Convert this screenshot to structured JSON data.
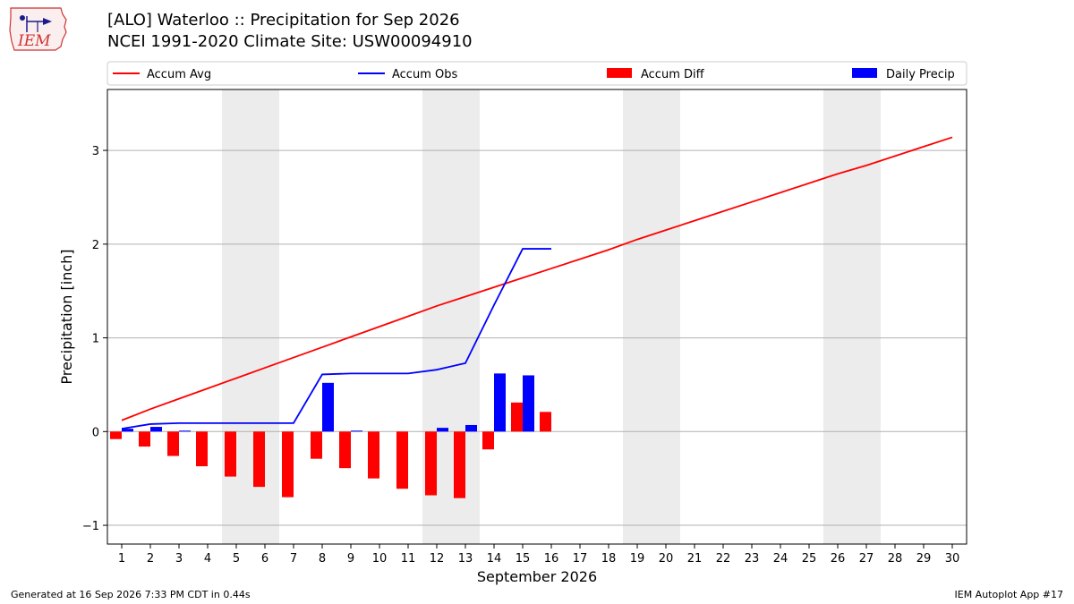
{
  "header": {
    "title": "[ALO] Waterloo :: Precipitation for Sep 2026",
    "subtitle": "NCEI 1991-2020 Climate Site: USW00094910"
  },
  "logo": {
    "text": "IEM",
    "icon": "iem-iowa-logo-icon",
    "color": "#cc3333"
  },
  "footer": {
    "generated": "Generated at 16 Sep 2026 7:33 PM CDT in 0.44s",
    "app": "IEM Autoplot App #17"
  },
  "chart_data": {
    "type": "bar",
    "xlabel": "September 2026",
    "ylabel": "Precipitation [inch]",
    "xlim": [
      0.5,
      30.5
    ],
    "ylim": [
      -1.2,
      3.65
    ],
    "yticks": [
      -1,
      0,
      1,
      2,
      3
    ],
    "ytick_labels": [
      "−1",
      "0",
      "1",
      "2",
      "3"
    ],
    "xticks": [
      1,
      2,
      3,
      4,
      5,
      6,
      7,
      8,
      9,
      10,
      11,
      12,
      13,
      14,
      15,
      16,
      17,
      18,
      19,
      20,
      21,
      22,
      23,
      24,
      25,
      26,
      27,
      28,
      29,
      30
    ],
    "weekend_shading": [
      [
        4.5,
        6.5
      ],
      [
        11.5,
        13.5
      ],
      [
        18.5,
        20.5
      ],
      [
        25.5,
        27.5
      ]
    ],
    "grid": "horizontal",
    "legend_position": "top",
    "legend": [
      {
        "label": "Accum Avg",
        "kind": "line",
        "color": "#ff0000"
      },
      {
        "label": "Accum Obs",
        "kind": "line",
        "color": "#0000ff"
      },
      {
        "label": "Accum Diff",
        "kind": "bar",
        "color": "#ff0000"
      },
      {
        "label": "Daily Precip",
        "kind": "bar",
        "color": "#0000ff"
      }
    ],
    "series": [
      {
        "name": "Accum Avg",
        "type": "line",
        "color": "#ff0000",
        "x": [
          1,
          2,
          3,
          4,
          5,
          6,
          7,
          8,
          9,
          10,
          11,
          12,
          13,
          14,
          15,
          16,
          17,
          18,
          19,
          20,
          21,
          22,
          23,
          24,
          25,
          26,
          27,
          28,
          29,
          30
        ],
        "values": [
          0.12,
          0.24,
          0.35,
          0.46,
          0.57,
          0.68,
          0.79,
          0.9,
          1.01,
          1.12,
          1.23,
          1.34,
          1.44,
          1.54,
          1.64,
          1.74,
          1.84,
          1.94,
          2.05,
          2.15,
          2.25,
          2.35,
          2.45,
          2.55,
          2.65,
          2.75,
          2.84,
          2.94,
          3.04,
          3.14
        ]
      },
      {
        "name": "Accum Obs",
        "type": "line",
        "color": "#0000ff",
        "x": [
          1,
          2,
          3,
          4,
          5,
          6,
          7,
          8,
          9,
          10,
          11,
          12,
          13,
          14,
          15,
          16
        ],
        "values": [
          0.03,
          0.08,
          0.09,
          0.09,
          0.09,
          0.09,
          0.09,
          0.61,
          0.62,
          0.62,
          0.62,
          0.66,
          0.73,
          1.35,
          1.95,
          1.95
        ]
      },
      {
        "name": "Accum Diff",
        "type": "bar",
        "color": "#ff0000",
        "x": [
          1,
          2,
          3,
          4,
          5,
          6,
          7,
          8,
          9,
          10,
          11,
          12,
          13,
          14,
          15,
          16
        ],
        "values": [
          -0.08,
          -0.16,
          -0.26,
          -0.37,
          -0.48,
          -0.59,
          -0.7,
          -0.29,
          -0.39,
          -0.5,
          -0.61,
          -0.68,
          -0.71,
          -0.19,
          0.31,
          0.21
        ]
      },
      {
        "name": "Daily Precip",
        "type": "bar",
        "color": "#0000ff",
        "x": [
          1,
          2,
          3,
          4,
          5,
          6,
          7,
          8,
          9,
          10,
          11,
          12,
          13,
          14,
          15,
          16
        ],
        "values": [
          0.03,
          0.05,
          0.01,
          0,
          0,
          0,
          0,
          0.52,
          0.01,
          0,
          0,
          0.04,
          0.07,
          0.62,
          0.6,
          0
        ]
      }
    ]
  }
}
